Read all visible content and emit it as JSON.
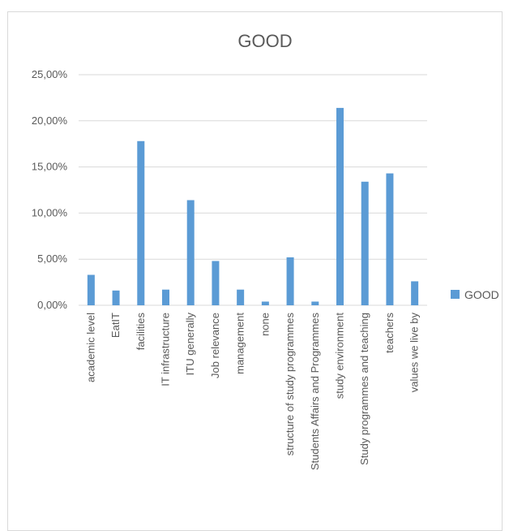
{
  "chart_data": {
    "type": "bar",
    "title": "GOOD",
    "categories": [
      "academic level",
      "EatIT",
      "facilities",
      "IT infrastructure",
      "ITU generally",
      "Job relevance",
      "management",
      "none",
      "structure of study programmes",
      "Students Affairs and Programmes",
      "study environment",
      "Study programmes and teaching",
      "teachers",
      "values we live by"
    ],
    "series": [
      {
        "name": "GOOD",
        "color": "#5b9bd5",
        "values": [
          3.3,
          1.6,
          17.8,
          1.7,
          11.4,
          4.8,
          1.7,
          0.4,
          5.2,
          0.4,
          21.4,
          13.4,
          14.3,
          2.6
        ]
      }
    ],
    "y_tick_labels": [
      "0,00%",
      "5,00%",
      "10,00%",
      "15,00%",
      "20,00%",
      "25,00%"
    ],
    "ylim": [
      0,
      25
    ],
    "ylabel": "",
    "xlabel": "",
    "grid": true,
    "legend_position": "right"
  }
}
